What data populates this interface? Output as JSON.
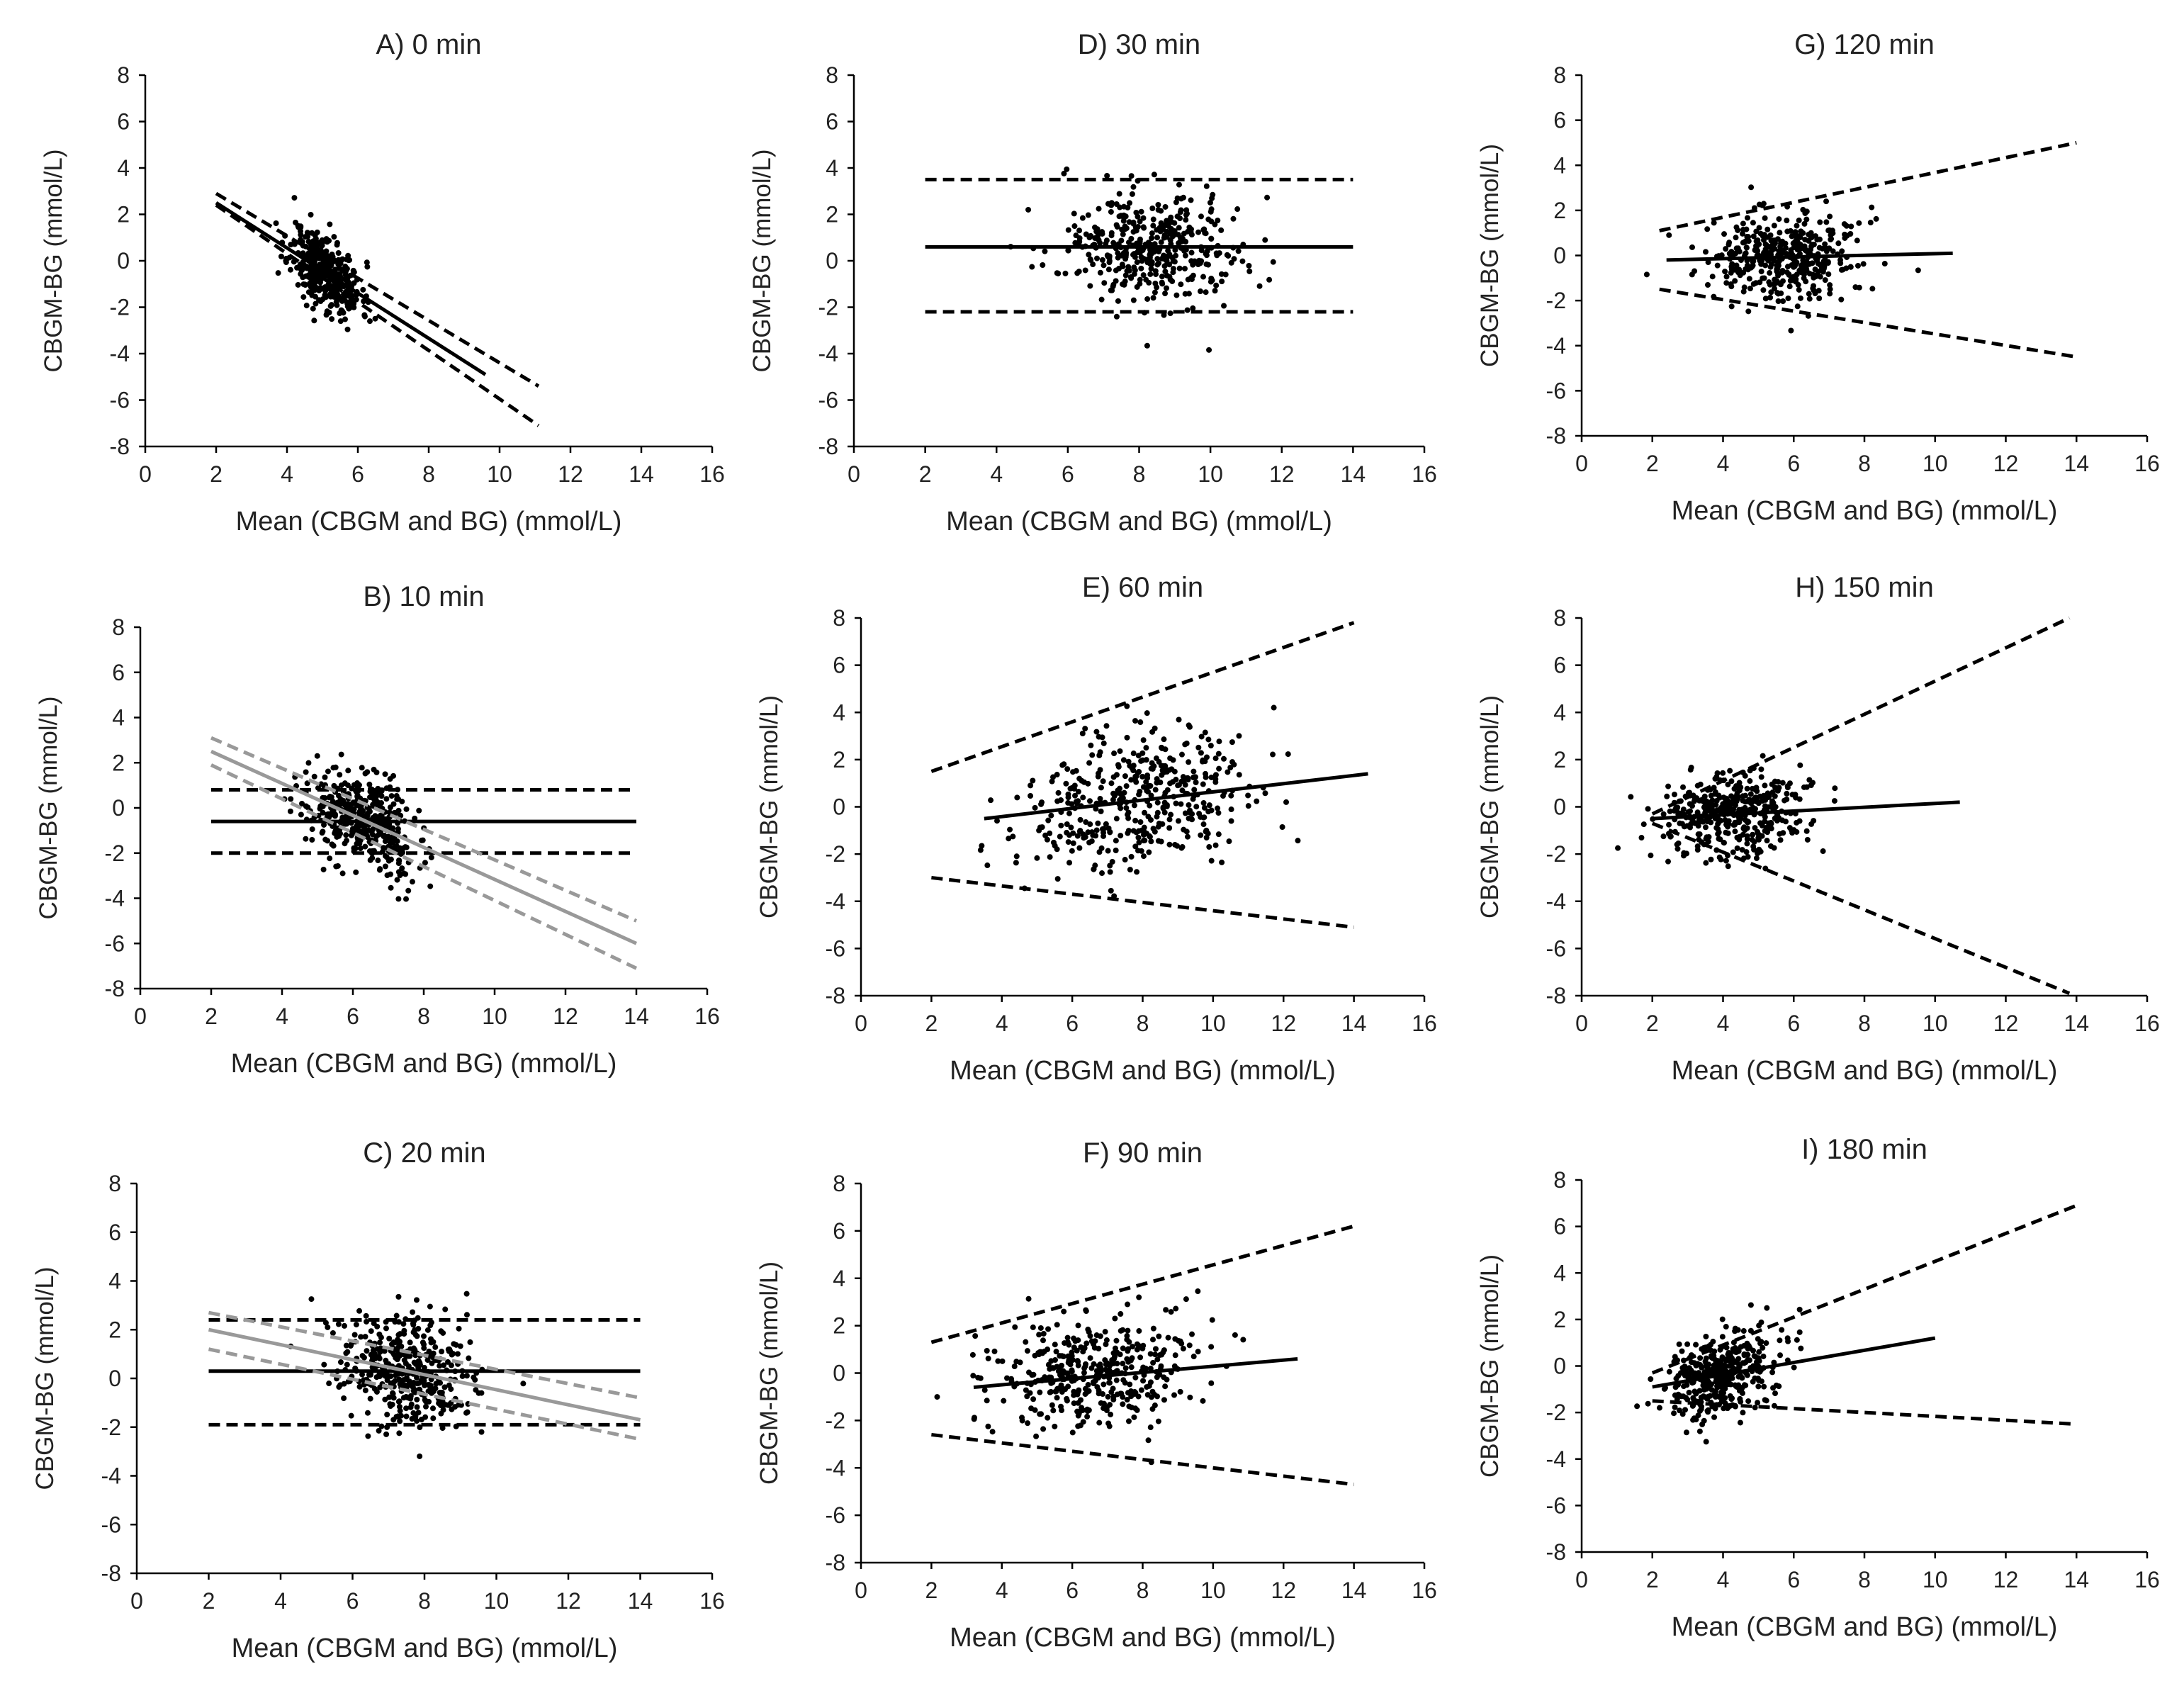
{
  "colors": {
    "black": "#000000",
    "gray": "#999999",
    "text": "#222222"
  },
  "chart_data": [
    {
      "id": "A",
      "type": "scatter",
      "title": "A) 0 min",
      "xlabel": "Mean (CBGM and BG) (mmol/L)",
      "ylabel": "CBGM-BG (mmol/L)",
      "xlim": [
        0,
        16
      ],
      "ylim": [
        -8,
        8
      ],
      "xticks": [
        0,
        2,
        4,
        6,
        8,
        10,
        12,
        14,
        16
      ],
      "yticks": [
        -8,
        -6,
        -4,
        -2,
        0,
        2,
        4,
        6,
        8
      ],
      "scatter": {
        "cx": 5.1,
        "cy": -0.5,
        "sx": 0.5,
        "sy": 0.8,
        "n": 380,
        "slope": -1.0,
        "seed": 11
      },
      "lines": [
        {
          "name": "bias",
          "style": "solid",
          "color": "black",
          "x": [
            2,
            9.6
          ],
          "y": [
            2.5,
            -4.9
          ]
        },
        {
          "name": "upper LoA",
          "style": "dashed",
          "color": "black",
          "x": [
            2,
            11.1
          ],
          "y": [
            2.9,
            -5.4
          ]
        },
        {
          "name": "lower LoA",
          "style": "dashed",
          "color": "black",
          "x": [
            2,
            11.1
          ],
          "y": [
            2.4,
            -7.1
          ]
        }
      ]
    },
    {
      "id": "B",
      "type": "scatter",
      "title": "B) 10 min",
      "xlabel": "Mean (CBGM and BG) (mmol/L)",
      "ylabel": "CBGM-BG (mmol/L)",
      "xlim": [
        0,
        16
      ],
      "ylim": [
        -8,
        8
      ],
      "xticks": [
        0,
        2,
        4,
        6,
        8,
        10,
        12,
        14,
        16
      ],
      "yticks": [
        -8,
        -6,
        -4,
        -2,
        0,
        2,
        4,
        6,
        8
      ],
      "scatter": {
        "cx": 6.3,
        "cy": -0.6,
        "sx": 0.75,
        "sy": 1.0,
        "n": 420,
        "slope": -0.6,
        "seed": 22
      },
      "lines": [
        {
          "name": "bias",
          "style": "solid",
          "color": "black",
          "x": [
            2,
            14
          ],
          "y": [
            -0.6,
            -0.6
          ]
        },
        {
          "name": "upper LoA",
          "style": "dashed",
          "color": "black",
          "x": [
            2,
            14
          ],
          "y": [
            0.8,
            0.8
          ]
        },
        {
          "name": "lower LoA",
          "style": "dashed",
          "color": "black",
          "x": [
            2,
            14
          ],
          "y": [
            -2.0,
            -2.0
          ]
        },
        {
          "name": "regression",
          "style": "solid",
          "color": "gray",
          "x": [
            2,
            14
          ],
          "y": [
            2.5,
            -6.0
          ]
        },
        {
          "name": "regression upper",
          "style": "dashed",
          "color": "gray",
          "x": [
            2,
            14
          ],
          "y": [
            3.1,
            -5.0
          ]
        },
        {
          "name": "regression lower",
          "style": "dashed",
          "color": "gray",
          "x": [
            2,
            14
          ],
          "y": [
            1.9,
            -7.1
          ]
        }
      ]
    },
    {
      "id": "C",
      "type": "scatter",
      "title": "C) 20 min",
      "xlabel": "Mean (CBGM and BG) (mmol/L)",
      "ylabel": "CBGM-BG (mmol/L)",
      "xlim": [
        0,
        16
      ],
      "ylim": [
        -8,
        8
      ],
      "xticks": [
        0,
        2,
        4,
        6,
        8,
        10,
        12,
        14,
        16
      ],
      "yticks": [
        -8,
        -6,
        -4,
        -2,
        0,
        2,
        4,
        6,
        8
      ],
      "scatter": {
        "cx": 7.5,
        "cy": 0.3,
        "sx": 0.9,
        "sy": 1.1,
        "n": 420,
        "slope": -0.3,
        "seed": 33
      },
      "lines": [
        {
          "name": "bias",
          "style": "solid",
          "color": "black",
          "x": [
            2,
            14
          ],
          "y": [
            0.3,
            0.3
          ]
        },
        {
          "name": "upper LoA",
          "style": "dashed",
          "color": "black",
          "x": [
            2,
            14
          ],
          "y": [
            2.4,
            2.4
          ]
        },
        {
          "name": "lower LoA",
          "style": "dashed",
          "color": "black",
          "x": [
            2,
            14
          ],
          "y": [
            -1.9,
            -1.9
          ]
        },
        {
          "name": "regression",
          "style": "solid",
          "color": "gray",
          "x": [
            2,
            14
          ],
          "y": [
            2.0,
            -1.7
          ]
        },
        {
          "name": "regression upper",
          "style": "dashed",
          "color": "gray",
          "x": [
            2,
            14
          ],
          "y": [
            2.7,
            -0.8
          ]
        },
        {
          "name": "regression lower",
          "style": "dashed",
          "color": "gray",
          "x": [
            2,
            14
          ],
          "y": [
            1.2,
            -2.5
          ]
        }
      ]
    },
    {
      "id": "D",
      "type": "scatter",
      "title": "D) 30 min",
      "xlabel": "Mean (CBGM and BG) (mmol/L)",
      "ylabel": "CBGM-BG (mmol/L)",
      "xlim": [
        0,
        16
      ],
      "ylim": [
        -8,
        8
      ],
      "xticks": [
        0,
        2,
        4,
        6,
        8,
        10,
        12,
        14,
        16
      ],
      "yticks": [
        -8,
        -6,
        -4,
        -2,
        0,
        2,
        4,
        6,
        8
      ],
      "scatter": {
        "cx": 8.3,
        "cy": 0.6,
        "sx": 1.3,
        "sy": 1.3,
        "n": 400,
        "slope": 0,
        "seed": 44
      },
      "lines": [
        {
          "name": "bias",
          "style": "solid",
          "color": "black",
          "x": [
            2,
            14
          ],
          "y": [
            0.6,
            0.6
          ]
        },
        {
          "name": "upper LoA",
          "style": "dashed",
          "color": "black",
          "x": [
            2,
            14
          ],
          "y": [
            3.5,
            3.5
          ]
        },
        {
          "name": "lower LoA",
          "style": "dashed",
          "color": "black",
          "x": [
            2,
            14
          ],
          "y": [
            -2.2,
            -2.2
          ]
        }
      ]
    },
    {
      "id": "E",
      "type": "scatter",
      "title": "E) 60 min",
      "xlabel": "Mean (CBGM and BG) (mmol/L)",
      "ylabel": "CBGM-BG (mmol/L)",
      "xlim": [
        0,
        16
      ],
      "ylim": [
        -8,
        8
      ],
      "xticks": [
        0,
        2,
        4,
        6,
        8,
        10,
        12,
        14,
        16
      ],
      "yticks": [
        -8,
        -6,
        -4,
        -2,
        0,
        2,
        4,
        6,
        8
      ],
      "scatter": {
        "cx": 7.9,
        "cy": 0.3,
        "sx": 1.7,
        "sy": 1.4,
        "n": 420,
        "slope": 0.17,
        "seed": 55
      },
      "lines": [
        {
          "name": "bias",
          "style": "solid",
          "color": "black",
          "x": [
            3.5,
            14.4
          ],
          "y": [
            -0.5,
            1.4
          ]
        },
        {
          "name": "upper LoA",
          "style": "dashed",
          "color": "black",
          "x": [
            2,
            14
          ],
          "y": [
            1.5,
            7.8
          ]
        },
        {
          "name": "lower LoA",
          "style": "dashed",
          "color": "black",
          "x": [
            2,
            14
          ],
          "y": [
            -3.0,
            -5.1
          ]
        }
      ]
    },
    {
      "id": "F",
      "type": "scatter",
      "title": "F) 90 min",
      "xlabel": "Mean (CBGM and BG) (mmol/L)",
      "ylabel": "CBGM-BG (mmol/L)",
      "xlim": [
        0,
        16
      ],
      "ylim": [
        -8,
        8
      ],
      "xticks": [
        0,
        2,
        4,
        6,
        8,
        10,
        12,
        14,
        16
      ],
      "yticks": [
        -8,
        -6,
        -4,
        -2,
        0,
        2,
        4,
        6,
        8
      ],
      "scatter": {
        "cx": 6.6,
        "cy": -0.1,
        "sx": 1.4,
        "sy": 1.2,
        "n": 400,
        "slope": 0.12,
        "seed": 66
      },
      "lines": [
        {
          "name": "bias",
          "style": "solid",
          "color": "black",
          "x": [
            3.2,
            12.4
          ],
          "y": [
            -0.6,
            0.6
          ]
        },
        {
          "name": "upper LoA",
          "style": "dashed",
          "color": "black",
          "x": [
            2,
            14
          ],
          "y": [
            1.3,
            6.2
          ]
        },
        {
          "name": "lower LoA",
          "style": "dashed",
          "color": "black",
          "x": [
            2,
            14
          ],
          "y": [
            -2.6,
            -4.7
          ]
        }
      ]
    },
    {
      "id": "G",
      "type": "scatter",
      "title": "G) 120 min",
      "xlabel": "Mean (CBGM and BG) (mmol/L)",
      "ylabel": "CBGM-BG (mmol/L)",
      "xlim": [
        0,
        16
      ],
      "ylim": [
        -8,
        8
      ],
      "xticks": [
        0,
        2,
        4,
        6,
        8,
        10,
        12,
        14,
        16
      ],
      "yticks": [
        -8,
        -6,
        -4,
        -2,
        0,
        2,
        4,
        6,
        8
      ],
      "scatter": {
        "cx": 5.7,
        "cy": -0.1,
        "sx": 1.1,
        "sy": 1.0,
        "n": 400,
        "slope": 0.03,
        "seed": 77
      },
      "lines": [
        {
          "name": "bias",
          "style": "solid",
          "color": "black",
          "x": [
            2.4,
            10.5
          ],
          "y": [
            -0.2,
            0.1
          ]
        },
        {
          "name": "upper LoA",
          "style": "dashed",
          "color": "black",
          "x": [
            2.2,
            14
          ],
          "y": [
            1.1,
            5.0
          ]
        },
        {
          "name": "lower LoA",
          "style": "dashed",
          "color": "black",
          "x": [
            2.2,
            14
          ],
          "y": [
            -1.5,
            -4.5
          ]
        }
      ]
    },
    {
      "id": "H",
      "type": "scatter",
      "title": "H) 150 min",
      "xlabel": "Mean (CBGM and BG) (mmol/L)",
      "ylabel": "CBGM-BG (mmol/L)",
      "xlim": [
        0,
        16
      ],
      "ylim": [
        -8,
        8
      ],
      "xticks": [
        0,
        2,
        4,
        6,
        8,
        10,
        12,
        14,
        16
      ],
      "yticks": [
        -8,
        -6,
        -4,
        -2,
        0,
        2,
        4,
        6,
        8
      ],
      "scatter": {
        "cx": 4.3,
        "cy": -0.3,
        "sx": 1.0,
        "sy": 0.9,
        "n": 420,
        "slope": 0.05,
        "seed": 88
      },
      "lines": [
        {
          "name": "bias",
          "style": "solid",
          "color": "black",
          "x": [
            2,
            10.7
          ],
          "y": [
            -0.5,
            0.2
          ]
        },
        {
          "name": "upper LoA",
          "style": "dashed",
          "color": "black",
          "x": [
            2,
            13.8
          ],
          "y": [
            -0.3,
            8.0
          ]
        },
        {
          "name": "lower LoA",
          "style": "dashed",
          "color": "black",
          "x": [
            2,
            13.8
          ],
          "y": [
            -0.7,
            -7.9
          ]
        }
      ]
    },
    {
      "id": "I",
      "type": "scatter",
      "title": "I) 180 min",
      "xlabel": "Mean (CBGM and BG) (mmol/L)",
      "ylabel": "CBGM-BG (mmol/L)",
      "xlim": [
        0,
        16
      ],
      "ylim": [
        -8,
        8
      ],
      "xticks": [
        0,
        2,
        4,
        6,
        8,
        10,
        12,
        14,
        16
      ],
      "yticks": [
        -8,
        -6,
        -4,
        -2,
        0,
        2,
        4,
        6,
        8
      ],
      "scatter": {
        "cx": 4.0,
        "cy": -0.4,
        "sx": 0.75,
        "sy": 0.9,
        "n": 400,
        "slope": 0.25,
        "seed": 99
      },
      "lines": [
        {
          "name": "bias",
          "style": "solid",
          "color": "black",
          "x": [
            2,
            10
          ],
          "y": [
            -0.9,
            1.2
          ]
        },
        {
          "name": "upper LoA",
          "style": "dashed",
          "color": "black",
          "x": [
            2,
            14
          ],
          "y": [
            -0.3,
            6.9
          ]
        },
        {
          "name": "lower LoA",
          "style": "dashed",
          "color": "black",
          "x": [
            2,
            14
          ],
          "y": [
            -1.5,
            -2.5
          ]
        }
      ]
    }
  ]
}
